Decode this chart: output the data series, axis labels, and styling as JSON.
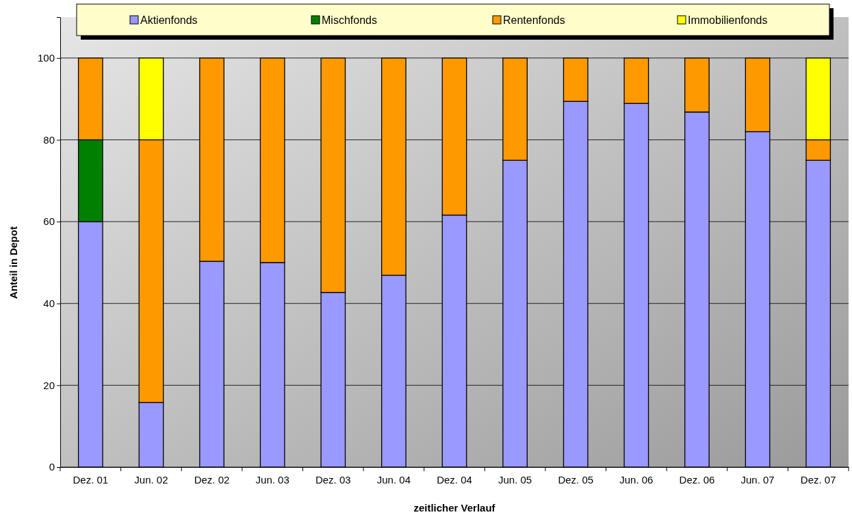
{
  "chart_data": {
    "type": "bar",
    "stacked": true,
    "xlabel": "zeitlicher Verlauf",
    "ylabel": "Anteil in Depot",
    "categories": [
      "Dez. 01",
      "Jun. 02",
      "Dez. 02",
      "Jun. 03",
      "Dez. 03",
      "Jun. 04",
      "Dez. 04",
      "Jun. 05",
      "Dez. 05",
      "Jun. 06",
      "Dez. 06",
      "Jun. 07",
      "Dez. 07"
    ],
    "series": [
      {
        "name": "Aktienfonds",
        "color": "#9999ff",
        "values": [
          60,
          15.8,
          50.3,
          50,
          42.7,
          46.9,
          61.6,
          75,
          89.4,
          88.9,
          86.8,
          82,
          75
        ]
      },
      {
        "name": "Mischfonds",
        "color": "#008000",
        "values": [
          20,
          null,
          null,
          null,
          null,
          null,
          null,
          null,
          null,
          null,
          null,
          null,
          null
        ]
      },
      {
        "name": "Rentenfonds",
        "color": "#ff9900",
        "values": [
          20,
          64.2,
          49.7,
          50,
          57.3,
          53.1,
          38.4,
          25,
          10.6,
          11.1,
          13.2,
          18,
          5
        ]
      },
      {
        "name": "Immobilienfonds",
        "color": "#ffff00",
        "values": [
          null,
          20,
          null,
          null,
          null,
          null,
          null,
          null,
          null,
          null,
          null,
          null,
          20
        ]
      }
    ],
    "ylim": [
      0,
      110
    ],
    "yticks": [
      0,
      20,
      40,
      60,
      80,
      100
    ],
    "grid": "y",
    "legend": "top"
  }
}
